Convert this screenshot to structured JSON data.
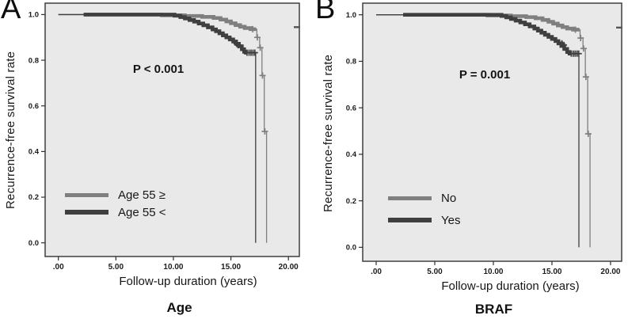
{
  "chart_data": [
    {
      "type": "line",
      "subtype": "kaplan_meier_step_survival",
      "panel_label": "A",
      "title": "Age",
      "xlabel": "Follow-up duration (years)",
      "ylabel": "Recurrence-free survival rate",
      "annotation": "P < 0.001",
      "legend_position": "lower-left",
      "grid": false,
      "plot_bg": "#e9e9e9",
      "frame_color": "#4a4a4a",
      "tick_color": "#2f2f2f",
      "xlim": [
        -1.15,
        20.95
      ],
      "ylim": [
        -0.06,
        1.05
      ],
      "xticks": {
        "values": [
          0,
          5,
          10,
          15,
          20
        ],
        "labels": [
          ".00",
          "5.00",
          "10.00",
          "15.00",
          "20.00"
        ]
      },
      "yticks": {
        "values": [
          0,
          0.2,
          0.4,
          0.6,
          0.8,
          1
        ],
        "labels": [
          "0.0",
          "0.2",
          "0.4",
          "0.6",
          "0.8",
          "1.0"
        ]
      },
      "edge_censor_s": 0.945,
      "series": [
        {
          "name": "Age 55 ≥",
          "color": "#7f7f7f",
          "band": [
            2.2,
            17.2
          ],
          "steps": [
            [
              0,
              1.0
            ],
            [
              9,
              0.997
            ],
            [
              11,
              0.994
            ],
            [
              12.5,
              0.99
            ],
            [
              13.5,
              0.985
            ],
            [
              14.1,
              0.978
            ],
            [
              14.6,
              0.97
            ],
            [
              15.0,
              0.962
            ],
            [
              15.4,
              0.954
            ],
            [
              15.8,
              0.947
            ],
            [
              16.2,
              0.941
            ],
            [
              16.7,
              0.936
            ],
            [
              17.25,
              0.9
            ],
            [
              17.5,
              0.855
            ],
            [
              17.7,
              0.733
            ],
            [
              17.9,
              0.488
            ],
            [
              18.1,
              0.0
            ]
          ],
          "censors": [
            [
              16.9,
              0.936
            ],
            [
              17.3,
              0.9
            ],
            [
              17.55,
              0.855
            ],
            [
              17.75,
              0.733
            ],
            [
              17.95,
              0.488
            ]
          ]
        },
        {
          "name": "Age 55 <",
          "color": "#3f3f3f",
          "band": [
            2.2,
            16.35
          ],
          "steps": [
            [
              0,
              1.0
            ],
            [
              10.1,
              0.995
            ],
            [
              10.6,
              0.989
            ],
            [
              11.0,
              0.983
            ],
            [
              11.4,
              0.976
            ],
            [
              11.8,
              0.969
            ],
            [
              12.2,
              0.961
            ],
            [
              12.6,
              0.953
            ],
            [
              13.0,
              0.944
            ],
            [
              13.4,
              0.935
            ],
            [
              13.7,
              0.927
            ],
            [
              14.0,
              0.918
            ],
            [
              14.3,
              0.909
            ],
            [
              14.6,
              0.9
            ],
            [
              14.9,
              0.891
            ],
            [
              15.2,
              0.882
            ],
            [
              15.45,
              0.872
            ],
            [
              15.7,
              0.861
            ],
            [
              15.95,
              0.848
            ],
            [
              16.15,
              0.837
            ],
            [
              16.3,
              0.833
            ],
            [
              17.15,
              0.0
            ]
          ],
          "censors": [
            [
              15.5,
              0.872
            ],
            [
              15.66,
              0.866
            ],
            [
              16.4,
              0.833
            ],
            [
              16.58,
              0.833
            ],
            [
              16.75,
              0.833
            ],
            [
              16.92,
              0.833
            ],
            [
              17.08,
              0.833
            ]
          ]
        }
      ]
    },
    {
      "type": "line",
      "subtype": "kaplan_meier_step_survival",
      "panel_label": "B",
      "title": "BRAF",
      "xlabel": "Follow-up duration (years)",
      "ylabel": "Recurrence-free survival rate",
      "annotation": "P = 0.001",
      "legend_position": "lower-left",
      "grid": false,
      "plot_bg": "#e9e9e9",
      "frame_color": "#4a4a4a",
      "tick_color": "#2f2f2f",
      "xlim": [
        -1.15,
        20.95
      ],
      "ylim": [
        -0.06,
        1.05
      ],
      "xticks": {
        "values": [
          0,
          5,
          10,
          15,
          20
        ],
        "labels": [
          ".00",
          "5.00",
          "10.00",
          "15.00",
          "20.00"
        ]
      },
      "yticks": {
        "values": [
          0,
          0.2,
          0.4,
          0.6,
          0.8,
          1
        ],
        "labels": [
          "0.0",
          "0.2",
          "0.4",
          "0.6",
          "0.8",
          "1.0"
        ]
      },
      "edge_censor_s": 0.945,
      "series": [
        {
          "name": "No",
          "color": "#7f7f7f",
          "band": [
            2.3,
            17.35
          ],
          "steps": [
            [
              0,
              1.0
            ],
            [
              9.5,
              0.997
            ],
            [
              11.5,
              0.994
            ],
            [
              12.8,
              0.99
            ],
            [
              13.6,
              0.985
            ],
            [
              14.2,
              0.978
            ],
            [
              14.7,
              0.97
            ],
            [
              15.1,
              0.962
            ],
            [
              15.5,
              0.954
            ],
            [
              15.9,
              0.947
            ],
            [
              16.3,
              0.941
            ],
            [
              16.8,
              0.936
            ],
            [
              17.4,
              0.9
            ],
            [
              17.65,
              0.855
            ],
            [
              17.85,
              0.733
            ],
            [
              18.05,
              0.488
            ],
            [
              18.25,
              0.0
            ]
          ],
          "censors": [
            [
              17.0,
              0.936
            ],
            [
              17.45,
              0.9
            ],
            [
              17.7,
              0.855
            ],
            [
              17.9,
              0.733
            ],
            [
              18.1,
              0.488
            ]
          ]
        },
        {
          "name": "Yes",
          "color": "#3f3f3f",
          "band": [
            2.3,
            16.6
          ],
          "steps": [
            [
              0,
              1.0
            ],
            [
              10.7,
              0.995
            ],
            [
              11.1,
              0.989
            ],
            [
              11.5,
              0.982
            ],
            [
              11.9,
              0.975
            ],
            [
              12.3,
              0.967
            ],
            [
              12.7,
              0.959
            ],
            [
              13.1,
              0.95
            ],
            [
              13.5,
              0.941
            ],
            [
              13.8,
              0.932
            ],
            [
              14.1,
              0.923
            ],
            [
              14.4,
              0.914
            ],
            [
              14.7,
              0.905
            ],
            [
              15.0,
              0.896
            ],
            [
              15.3,
              0.887
            ],
            [
              15.55,
              0.877
            ],
            [
              15.8,
              0.866
            ],
            [
              16.05,
              0.853
            ],
            [
              16.3,
              0.84
            ],
            [
              16.5,
              0.833
            ],
            [
              17.3,
              0.0
            ]
          ],
          "censors": [
            [
              15.85,
              0.877
            ],
            [
              16.02,
              0.87
            ],
            [
              16.65,
              0.833
            ],
            [
              16.82,
              0.833
            ],
            [
              16.98,
              0.833
            ],
            [
              17.14,
              0.833
            ],
            [
              17.28,
              0.833
            ]
          ]
        }
      ]
    }
  ]
}
